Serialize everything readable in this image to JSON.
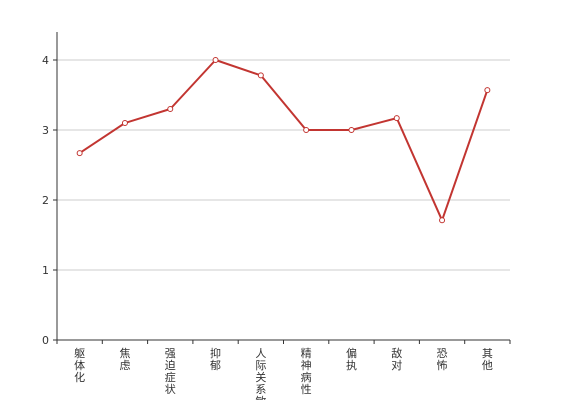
{
  "chart_data": {
    "type": "line",
    "categories": [
      "躯体化",
      "焦虑",
      "强迫症状",
      "抑郁",
      "人际关系敏感",
      "精神病性",
      "偏执",
      "敌对",
      "恐怖",
      "其他"
    ],
    "series": [
      {
        "values": [
          2.67,
          3.1,
          3.3,
          4.0,
          3.78,
          3.0,
          3.0,
          3.17,
          1.71,
          3.57
        ]
      }
    ],
    "y_ticks": [
      "0",
      "1",
      "2",
      "3",
      "4"
    ],
    "ylim": [
      0,
      4.4
    ],
    "grid": true,
    "line_color": "#c23531",
    "title": "",
    "xlabel": "",
    "ylabel": ""
  }
}
